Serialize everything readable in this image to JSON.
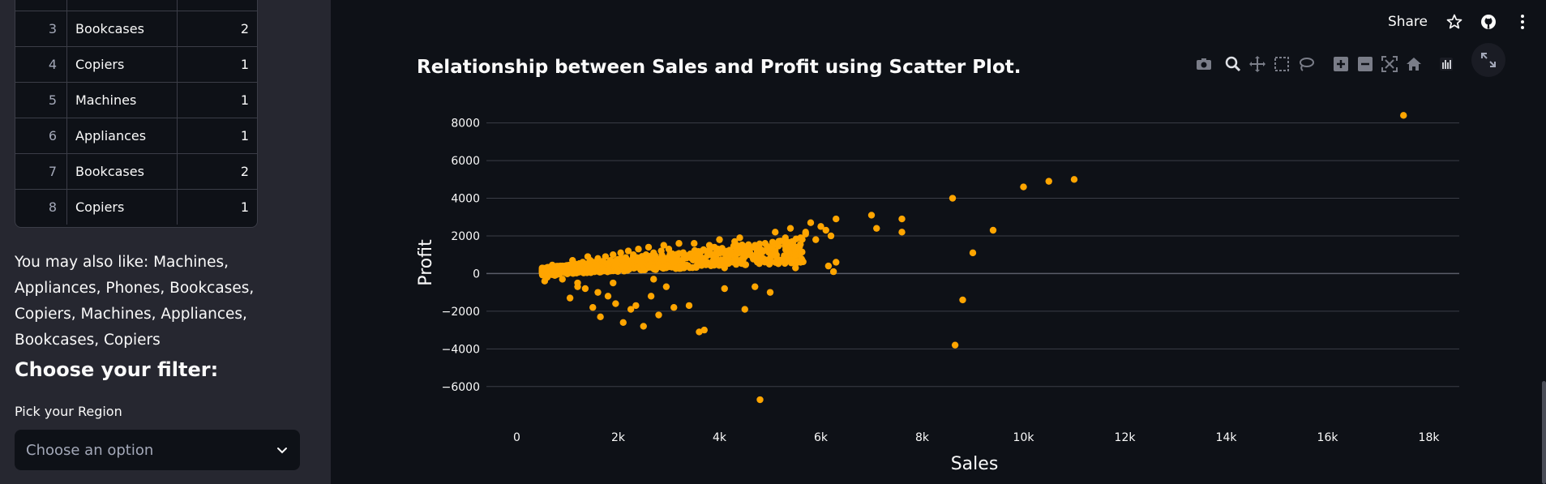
{
  "sidebar": {
    "table": {
      "rows": [
        {
          "index": "",
          "category": "",
          "count": ""
        },
        {
          "index": "3",
          "category": "Bookcases",
          "count": "2"
        },
        {
          "index": "4",
          "category": "Copiers",
          "count": "1"
        },
        {
          "index": "5",
          "category": "Machines",
          "count": "1"
        },
        {
          "index": "6",
          "category": "Appliances",
          "count": "1"
        },
        {
          "index": "7",
          "category": "Bookcases",
          "count": "2"
        },
        {
          "index": "8",
          "category": "Copiers",
          "count": "1"
        }
      ]
    },
    "also_like_text": "You may also like: Machines, Appliances, Phones, Bookcases, Copiers, Machines, Appliances, Bookcases, Copiers",
    "filter_heading": "Choose your filter:",
    "region_label": "Pick your Region",
    "region_placeholder": "Choose an option"
  },
  "header": {
    "share_label": "Share",
    "icons": [
      "star-icon",
      "github-icon",
      "more-vertical-icon"
    ]
  },
  "main": {
    "chart_title": "Relationship between Sales and Profit using Scatter Plot.",
    "modebar_icons": [
      "camera-icon",
      "zoom-icon",
      "pan-icon",
      "box-select-icon",
      "lasso-icon",
      "zoom-in-icon",
      "zoom-out-icon",
      "autoscale-icon",
      "reset-axes-icon",
      "plotly-logo-icon"
    ],
    "fullscreen_icon": "fullscreen-icon"
  },
  "colors": {
    "background": "#0e1117",
    "sidebar": "#262730",
    "marker": "#ffa500",
    "grid": "#3a3d47"
  },
  "chart_data": {
    "type": "scatter",
    "title": "Relationship between Sales and Profit using Scatter Plot.",
    "xlabel": "Sales",
    "ylabel": "Profit",
    "xlim": [
      -600,
      18600
    ],
    "ylim": [
      -7000,
      8500
    ],
    "xticks": [
      0,
      2000,
      4000,
      6000,
      8000,
      10000,
      12000,
      14000,
      16000,
      18000
    ],
    "xtick_labels": [
      "0",
      "2k",
      "4k",
      "6k",
      "8k",
      "10k",
      "12k",
      "14k",
      "16k",
      "18k"
    ],
    "yticks": [
      -6000,
      -4000,
      -2000,
      0,
      2000,
      4000,
      6000,
      8000
    ],
    "ytick_labels": [
      "−6000",
      "−4000",
      "−2000",
      "0",
      "2000",
      "4000",
      "6000",
      "8000"
    ],
    "grid": true,
    "marker_color": "#ffa500",
    "points": [
      [
        500,
        100
      ],
      [
        550,
        -400
      ],
      [
        600,
        50
      ],
      [
        650,
        200
      ],
      [
        700,
        150
      ],
      [
        750,
        -100
      ],
      [
        800,
        300
      ],
      [
        850,
        250
      ],
      [
        900,
        -300
      ],
      [
        950,
        400
      ],
      [
        1000,
        200
      ],
      [
        1050,
        -1300
      ],
      [
        1100,
        350
      ],
      [
        1150,
        500
      ],
      [
        1200,
        -500
      ],
      [
        1250,
        300
      ],
      [
        1300,
        600
      ],
      [
        1350,
        -800
      ],
      [
        1400,
        450
      ],
      [
        1450,
        700
      ],
      [
        1500,
        -1800
      ],
      [
        1550,
        550
      ],
      [
        1600,
        800
      ],
      [
        1650,
        -2300
      ],
      [
        1700,
        650
      ],
      [
        1750,
        900
      ],
      [
        1800,
        -1200
      ],
      [
        1850,
        700
      ],
      [
        1900,
        1000
      ],
      [
        1950,
        -1600
      ],
      [
        2000,
        750
      ],
      [
        2050,
        1100
      ],
      [
        2100,
        -2600
      ],
      [
        2150,
        850
      ],
      [
        2200,
        1200
      ],
      [
        2250,
        -1900
      ],
      [
        2300,
        900
      ],
      [
        2350,
        -1700
      ],
      [
        2400,
        1300
      ],
      [
        2450,
        600
      ],
      [
        2500,
        -2800
      ],
      [
        2550,
        1000
      ],
      [
        2600,
        1400
      ],
      [
        2650,
        -1200
      ],
      [
        2700,
        1100
      ],
      [
        2750,
        800
      ],
      [
        2800,
        -2200
      ],
      [
        2850,
        1200
      ],
      [
        2900,
        1500
      ],
      [
        2950,
        -700
      ],
      [
        3000,
        1300
      ],
      [
        3100,
        -1800
      ],
      [
        3200,
        1600
      ],
      [
        3300,
        900
      ],
      [
        3400,
        -1700
      ],
      [
        3500,
        1100
      ],
      [
        3600,
        -3100
      ],
      [
        3700,
        -3000
      ],
      [
        3800,
        1500
      ],
      [
        3900,
        500
      ],
      [
        4000,
        1800
      ],
      [
        4100,
        -800
      ],
      [
        4200,
        1200
      ],
      [
        4300,
        600
      ],
      [
        4400,
        1900
      ],
      [
        4500,
        -1900
      ],
      [
        4600,
        1300
      ],
      [
        4700,
        -700
      ],
      [
        4800,
        -6700
      ],
      [
        4900,
        1600
      ],
      [
        5000,
        -1000
      ],
      [
        5100,
        2200
      ],
      [
        5200,
        700
      ],
      [
        5300,
        1500
      ],
      [
        5400,
        2400
      ],
      [
        5500,
        300
      ],
      [
        5600,
        1900
      ],
      [
        5700,
        2100
      ],
      [
        5800,
        2700
      ],
      [
        5900,
        1800
      ],
      [
        6000,
        2500
      ],
      [
        6100,
        2300
      ],
      [
        6150,
        400
      ],
      [
        6200,
        2000
      ],
      [
        6250,
        100
      ],
      [
        6300,
        2900
      ],
      [
        6300,
        600
      ],
      [
        7000,
        3100
      ],
      [
        7100,
        2400
      ],
      [
        7600,
        2900
      ],
      [
        7600,
        2200
      ],
      [
        8600,
        4000
      ],
      [
        8650,
        -3800
      ],
      [
        8800,
        -1400
      ],
      [
        9000,
        1100
      ],
      [
        9400,
        2300
      ],
      [
        10000,
        4600
      ],
      [
        10500,
        4900
      ],
      [
        11000,
        5000
      ],
      [
        17500,
        8400
      ],
      [
        600,
        -200
      ],
      [
        700,
        450
      ],
      [
        900,
        100
      ],
      [
        1100,
        700
      ],
      [
        1200,
        -700
      ],
      [
        1300,
        100
      ],
      [
        1400,
        900
      ],
      [
        1600,
        -1000
      ],
      [
        1700,
        200
      ],
      [
        1800,
        500
      ],
      [
        1900,
        -500
      ],
      [
        2100,
        400
      ],
      [
        2300,
        1000
      ],
      [
        2500,
        200
      ],
      [
        2700,
        -300
      ],
      [
        2900,
        700
      ],
      [
        3100,
        900
      ],
      [
        3300,
        300
      ],
      [
        3500,
        1600
      ],
      [
        3700,
        800
      ],
      [
        3900,
        1400
      ],
      [
        4100,
        300
      ],
      [
        4300,
        1700
      ],
      [
        4500,
        900
      ],
      [
        4700,
        1500
      ],
      [
        4900,
        700
      ],
      [
        5100,
        1200
      ],
      [
        5300,
        1900
      ],
      [
        5500,
        1000
      ],
      [
        5700,
        2200
      ]
    ]
  }
}
